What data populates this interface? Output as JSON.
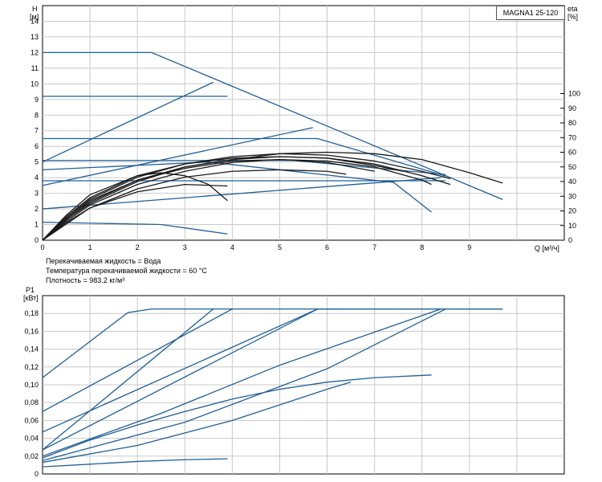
{
  "model": "MAGNA1 25-120",
  "notes": {
    "fluid": "Перекачиваемая жидкость = Вода",
    "temperature": "Температура перекачиваемой жидкости = 60 °C",
    "density": "Плотность = 983.2 кг/м³"
  },
  "colors": {
    "curve": "#1f5f96",
    "efficiency": "#1a1a1a",
    "grid": "#c8c8c8",
    "axis": "#000000"
  },
  "chart_data": [
    {
      "type": "line",
      "title": "",
      "ylabel_line1": "H",
      "ylabel_line2": "[м]",
      "xlabel": "Q [м³/ч]",
      "y2label_line1": "eta",
      "y2label_line2": "[%]",
      "xlim": [
        0,
        11
      ],
      "ylim": [
        0,
        15
      ],
      "y2lim": [
        0,
        160
      ],
      "xticks": [
        "0",
        "1",
        "2",
        "3",
        "4",
        "5",
        "6",
        "7",
        "8",
        "9"
      ],
      "yticks": [
        "0",
        "1",
        "2",
        "3",
        "4",
        "5",
        "6",
        "7",
        "8",
        "9",
        "10",
        "11",
        "12",
        "13",
        "14"
      ],
      "y2ticks": [
        "0",
        "10",
        "20",
        "30",
        "40",
        "50",
        "60",
        "70",
        "80",
        "90",
        "100"
      ],
      "grid": true,
      "series": [
        {
          "kind": "head",
          "x": [
            0,
            2.3,
            9.7
          ],
          "y": [
            12,
            12,
            2.6
          ]
        },
        {
          "kind": "head",
          "x": [
            0,
            3.9
          ],
          "y": [
            9.2,
            9.2
          ]
        },
        {
          "kind": "head",
          "x": [
            0,
            5.8,
            8.5
          ],
          "y": [
            6.5,
            6.5,
            4.1
          ]
        },
        {
          "kind": "head",
          "x": [
            0,
            5.3,
            8.5
          ],
          "y": [
            5.1,
            5.1,
            4.2
          ]
        },
        {
          "kind": "head",
          "x": [
            0,
            8.5
          ],
          "y": [
            3.8,
            3.8
          ]
        },
        {
          "kind": "head",
          "x": [
            0,
            3.5,
            7.4,
            8.2
          ],
          "y": [
            4.5,
            5.0,
            3.7,
            1.8
          ]
        },
        {
          "kind": "head",
          "x": [
            0,
            2.5,
            3.9
          ],
          "y": [
            1.15,
            1.0,
            0.4
          ]
        },
        {
          "kind": "head",
          "x": [
            0,
            3.6
          ],
          "y": [
            5.0,
            10.1
          ]
        },
        {
          "kind": "head",
          "x": [
            0,
            5.7
          ],
          "y": [
            3.5,
            7.2
          ]
        },
        {
          "kind": "head",
          "x": [
            0,
            8.4
          ],
          "y": [
            2.0,
            4.0
          ]
        },
        {
          "kind": "eta",
          "x": [
            0,
            0.4,
            1.0,
            2.0,
            3.0,
            4.0,
            5.0,
            6.0,
            7.0,
            8.0,
            9.0,
            9.7
          ],
          "y": [
            0,
            12,
            25,
            40,
            50,
            55,
            59,
            60,
            59,
            55,
            46,
            39
          ]
        },
        {
          "kind": "eta",
          "x": [
            0,
            0.5,
            1.0,
            2.0,
            3.0,
            4.0,
            5.0,
            6.0,
            7.0,
            8.0,
            8.6
          ],
          "y": [
            0,
            15,
            28,
            43,
            52,
            57,
            59,
            58,
            54,
            47,
            42
          ]
        },
        {
          "kind": "eta",
          "x": [
            0,
            0.5,
            1.0,
            2.0,
            3.0,
            4.0,
            5.0,
            6.0,
            7.0,
            8.0,
            8.6
          ],
          "y": [
            0,
            14,
            26,
            41,
            50,
            55,
            57,
            56,
            52,
            44,
            38
          ]
        },
        {
          "kind": "eta",
          "x": [
            0,
            0.5,
            1.0,
            2.0,
            3.0,
            4.0,
            5.0,
            6.0,
            7.0,
            7.6
          ],
          "y": [
            0,
            16,
            29,
            44,
            52,
            56,
            57,
            56,
            51,
            47
          ]
        },
        {
          "kind": "eta",
          "x": [
            0,
            0.5,
            1.0,
            2.0,
            3.0,
            4.0,
            5.0,
            6.0,
            7.0
          ],
          "y": [
            0,
            15,
            27,
            41,
            49,
            54,
            55,
            53,
            47
          ]
        },
        {
          "kind": "eta",
          "x": [
            0,
            0.5,
            1.0,
            2.0,
            3.0,
            4.0,
            5.0,
            6.0,
            7.0,
            8.0,
            8.2
          ],
          "y": [
            0,
            13,
            24,
            38,
            47,
            53,
            55,
            54,
            50,
            41,
            38
          ]
        },
        {
          "kind": "eta",
          "x": [
            0,
            0.5,
            1.0,
            2.0,
            3.0,
            4.0,
            5.0,
            6.0,
            6.4
          ],
          "y": [
            0,
            12,
            22,
            35,
            43,
            47,
            48,
            47,
            45
          ]
        },
        {
          "kind": "eta",
          "x": [
            0,
            0.5,
            1.0,
            2.0,
            2.5,
            3.0,
            3.5,
            3.9
          ],
          "y": [
            0,
            17,
            31,
            44,
            46,
            44,
            38,
            27
          ]
        },
        {
          "kind": "eta",
          "x": [
            0,
            1.0,
            2.0,
            3.0,
            3.9
          ],
          "y": [
            0,
            22,
            33,
            38,
            37
          ]
        }
      ]
    },
    {
      "type": "line",
      "title": "",
      "ylabel_line1": "P1",
      "ylabel_line2": "[кВт]",
      "ylim": [
        0,
        0.2
      ],
      "yticks": [
        "0",
        "0,02",
        "0,04",
        "0,06",
        "0,08",
        "0,10",
        "0,12",
        "0,14",
        "0,16",
        "0,18"
      ],
      "grid": true,
      "series": [
        {
          "x": [
            0,
            1.8,
            2.3,
            9.7
          ],
          "y": [
            0.108,
            0.181,
            0.185,
            0.185
          ]
        },
        {
          "x": [
            0,
            4.0
          ],
          "y": [
            0.07,
            0.185
          ]
        },
        {
          "x": [
            0,
            3.6
          ],
          "y": [
            0.027,
            0.185
          ]
        },
        {
          "x": [
            0,
            5.8,
            6.3
          ],
          "y": [
            0.047,
            0.185,
            0.185
          ]
        },
        {
          "x": [
            0,
            5.8,
            9.7
          ],
          "y": [
            0.027,
            0.185,
            0.185
          ]
        },
        {
          "x": [
            0,
            3.0,
            6.0,
            8.5
          ],
          "y": [
            0.015,
            0.058,
            0.118,
            0.185
          ]
        },
        {
          "x": [
            0,
            2.5,
            5.0,
            8.4
          ],
          "y": [
            0.02,
            0.068,
            0.122,
            0.185
          ]
        },
        {
          "x": [
            0,
            1.0,
            2.0,
            3.0,
            4.0,
            5.0,
            6.0,
            7.0,
            8.2
          ],
          "y": [
            0.018,
            0.038,
            0.055,
            0.07,
            0.084,
            0.095,
            0.103,
            0.108,
            0.111
          ]
        },
        {
          "x": [
            0,
            2.0,
            4.0,
            6.0,
            6.5
          ],
          "y": [
            0.013,
            0.032,
            0.06,
            0.095,
            0.103
          ]
        },
        {
          "x": [
            0,
            1.0,
            2.0,
            3.0,
            3.9
          ],
          "y": [
            0.008,
            0.011,
            0.014,
            0.016,
            0.017
          ]
        }
      ]
    }
  ]
}
